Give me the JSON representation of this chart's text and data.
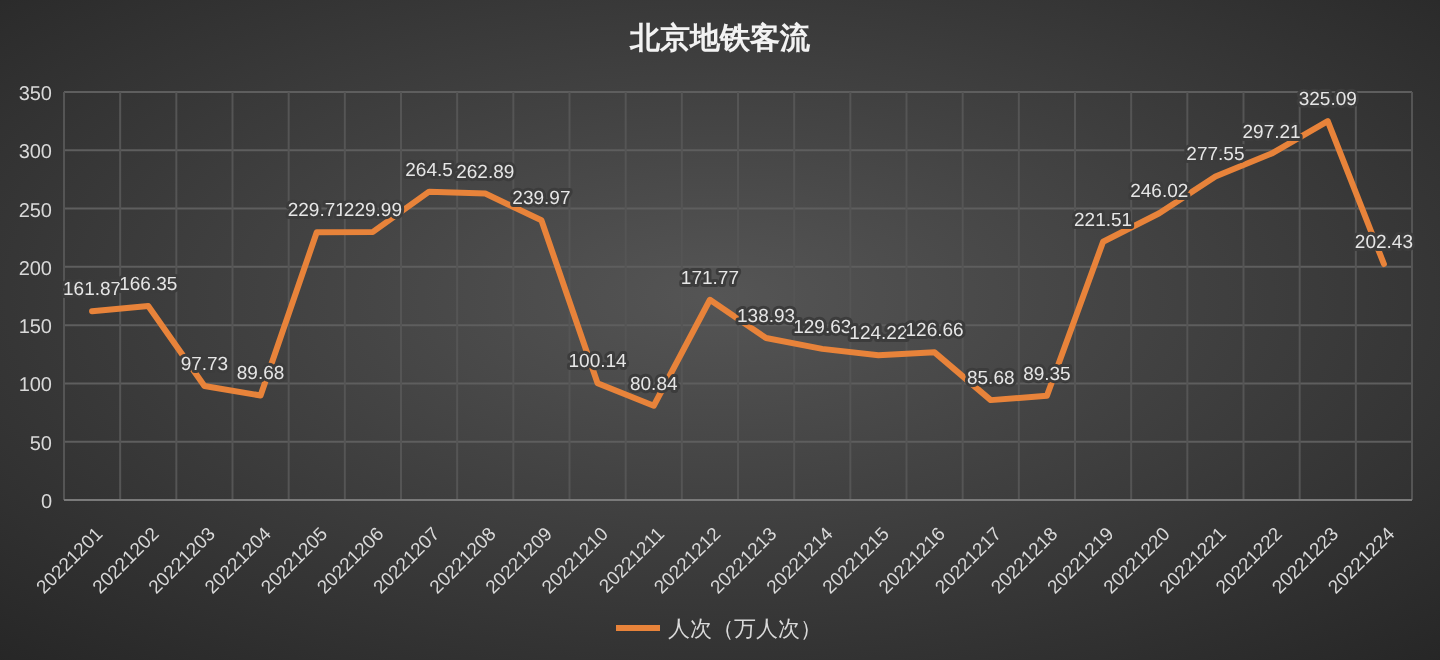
{
  "chart_data": {
    "type": "line",
    "title": "北京地铁客流",
    "categories": [
      "20221201",
      "20221202",
      "20221203",
      "20221204",
      "20221205",
      "20221206",
      "20221207",
      "20221208",
      "20221209",
      "20221210",
      "20221211",
      "20221212",
      "20221213",
      "20221214",
      "20221215",
      "20221216",
      "20221217",
      "20221218",
      "20221219",
      "20221220",
      "20221221",
      "20221222",
      "20221223",
      "20221224"
    ],
    "series": [
      {
        "name": "人次（万人次）",
        "color": "#e8833a",
        "values": [
          161.87,
          166.35,
          97.73,
          89.68,
          229.71,
          229.99,
          264.5,
          262.89,
          239.97,
          100.14,
          80.84,
          171.77,
          138.93,
          129.63,
          124.22,
          126.66,
          85.68,
          89.35,
          221.51,
          246.02,
          277.55,
          297.21,
          325.09,
          202.43
        ]
      }
    ],
    "ylim": [
      0,
      350
    ],
    "yticks": [
      0,
      50,
      100,
      150,
      200,
      250,
      300,
      350
    ],
    "grid": true,
    "legend": "bottom",
    "data_labels": true,
    "marker": "none",
    "line_style": "solid"
  }
}
